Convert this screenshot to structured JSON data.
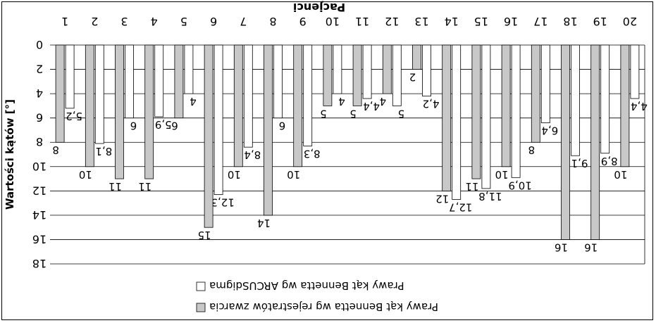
{
  "chart_data": {
    "type": "bar",
    "title": "Pacjenci",
    "ylabel": "Wartości kątów [°]",
    "ylim": [
      0,
      18
    ],
    "ytick_step": 2,
    "yticks": [
      "0",
      "2",
      "4",
      "6",
      "8",
      "10",
      "12",
      "14",
      "16",
      "18"
    ],
    "grid": true,
    "legend_position": "bottom",
    "categories": [
      "1",
      "2",
      "3",
      "4",
      "5",
      "6",
      "7",
      "8",
      "9",
      "10",
      "11",
      "12",
      "13",
      "14",
      "15",
      "16",
      "17",
      "18",
      "19",
      "20"
    ],
    "series": [
      {
        "name": "Prawy kąt Bennetta wg rejestratów zwarcia",
        "color": "#c8c8c8",
        "values": [
          8,
          10,
          11,
          11,
          6,
          15,
          10,
          14,
          10,
          5,
          5,
          4,
          2,
          12,
          11,
          10,
          8,
          16,
          16,
          10
        ],
        "labels": [
          "8",
          "10",
          "11",
          "11",
          "6",
          "15",
          "10",
          "14",
          "10",
          "5",
          "5",
          "4",
          "2",
          "12",
          "11",
          "10",
          "8",
          "16",
          "16",
          "10"
        ]
      },
      {
        "name": "Prawy kąt Bennetta wg ARCUSdigma",
        "color": "#ffffff",
        "values": [
          5.2,
          8.1,
          6,
          5.9,
          4,
          12.3,
          8.4,
          6,
          8.3,
          4,
          4.4,
          5,
          4.2,
          12.7,
          11.8,
          10.9,
          6.4,
          9.1,
          8.9,
          4.4
        ],
        "labels": [
          "5,2",
          "8,1",
          "6",
          "5,9",
          "4",
          "12,3",
          "8,4",
          "6",
          "8,3",
          "4",
          "4,4",
          "5",
          "4,2",
          "12,7",
          "11,8",
          "10,9",
          "6,4",
          "9,1",
          "8,9",
          "4,4"
        ]
      }
    ]
  }
}
